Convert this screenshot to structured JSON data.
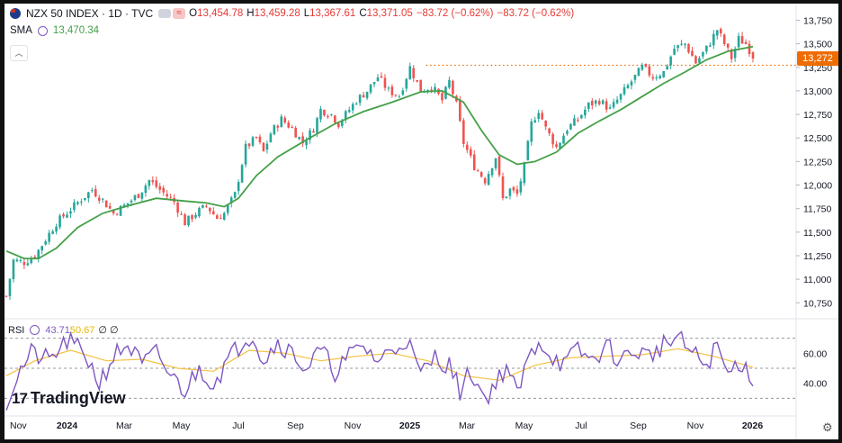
{
  "header": {
    "symbol": "NZX 50 INDEX · 1D · TVC",
    "o_label": "O",
    "o_value": "13,454.78",
    "h_label": "H",
    "h_value": "13,459.28",
    "l_label": "L",
    "l_value": "13,367.61",
    "c_label": "C",
    "c_value": "13,371.05",
    "change": "−83.72 (−0.62%)",
    "change2": "−83.72 (−0.62%)",
    "pill_icon": "≈"
  },
  "sma": {
    "label": "SMA",
    "value": "13,470.34"
  },
  "rsi": {
    "label": "RSI",
    "value": "43.71",
    "ma_value": "50.67",
    "extra": "∅ ∅"
  },
  "logo": {
    "mark": "17",
    "text": "TradingView"
  },
  "price_label": "13,272",
  "colors": {
    "up": "#26a69a",
    "down": "#ef5350",
    "sma": "#43a047",
    "rsi": "#7e57c2",
    "rsi_ma": "#f5c242",
    "last_price": "#ef6c00"
  },
  "chart_data": {
    "type": "candlestick",
    "y_ticks": [
      "13,750",
      "13,500",
      "13,250",
      "13,000",
      "12,750",
      "12,500",
      "12,250",
      "12,000",
      "11,750",
      "11,500",
      "11,250",
      "11,000",
      "10,750"
    ],
    "x_ticks": [
      "Nov",
      "2024",
      "Mar",
      "May",
      "Jul",
      "Sep",
      "Nov",
      "2025",
      "Mar",
      "May",
      "Jul",
      "Sep",
      "Nov",
      "2026"
    ],
    "ylim": [
      10600,
      13850
    ],
    "close_path": [
      {
        "x": 0,
        "y": 10820
      },
      {
        "x": 2,
        "y": 11200
      },
      {
        "x": 5,
        "y": 11180
      },
      {
        "x": 8,
        "y": 11250
      },
      {
        "x": 14,
        "y": 11600
      },
      {
        "x": 21,
        "y": 11850
      },
      {
        "x": 24,
        "y": 11950
      },
      {
        "x": 27,
        "y": 11840
      },
      {
        "x": 30,
        "y": 11700
      },
      {
        "x": 33,
        "y": 11780
      },
      {
        "x": 37,
        "y": 11900
      },
      {
        "x": 40,
        "y": 12050
      },
      {
        "x": 43,
        "y": 11950
      },
      {
        "x": 47,
        "y": 11820
      },
      {
        "x": 50,
        "y": 11600
      },
      {
        "x": 53,
        "y": 11700
      },
      {
        "x": 56,
        "y": 11780
      },
      {
        "x": 59,
        "y": 11650
      },
      {
        "x": 61,
        "y": 11700
      },
      {
        "x": 64,
        "y": 11900
      },
      {
        "x": 67,
        "y": 12400
      },
      {
        "x": 70,
        "y": 12500
      },
      {
        "x": 72,
        "y": 12350
      },
      {
        "x": 74,
        "y": 12550
      },
      {
        "x": 77,
        "y": 12700
      },
      {
        "x": 80,
        "y": 12600
      },
      {
        "x": 83,
        "y": 12450
      },
      {
        "x": 86,
        "y": 12600
      },
      {
        "x": 88,
        "y": 12800
      },
      {
        "x": 91,
        "y": 12750
      },
      {
        "x": 93,
        "y": 12650
      },
      {
        "x": 96,
        "y": 12800
      },
      {
        "x": 98,
        "y": 12900
      },
      {
        "x": 101,
        "y": 13000
      },
      {
        "x": 104,
        "y": 13150
      },
      {
        "x": 107,
        "y": 13000
      },
      {
        "x": 110,
        "y": 12950
      },
      {
        "x": 113,
        "y": 13250
      },
      {
        "x": 116,
        "y": 13000
      },
      {
        "x": 119,
        "y": 13050
      },
      {
        "x": 122,
        "y": 12900
      },
      {
        "x": 124,
        "y": 13100
      },
      {
        "x": 126,
        "y": 12850
      },
      {
        "x": 128,
        "y": 12450
      },
      {
        "x": 131,
        "y": 12200
      },
      {
        "x": 134,
        "y": 12050
      },
      {
        "x": 137,
        "y": 12300
      },
      {
        "x": 139,
        "y": 11850
      },
      {
        "x": 141,
        "y": 11950
      },
      {
        "x": 143,
        "y": 11900
      },
      {
        "x": 145,
        "y": 12200
      },
      {
        "x": 147,
        "y": 12650
      },
      {
        "x": 149,
        "y": 12800
      },
      {
        "x": 151,
        "y": 12600
      },
      {
        "x": 154,
        "y": 12400
      },
      {
        "x": 157,
        "y": 12600
      },
      {
        "x": 160,
        "y": 12700
      },
      {
        "x": 163,
        "y": 12850
      },
      {
        "x": 166,
        "y": 12900
      },
      {
        "x": 169,
        "y": 12800
      },
      {
        "x": 172,
        "y": 12950
      },
      {
        "x": 175,
        "y": 13100
      },
      {
        "x": 178,
        "y": 13250
      },
      {
        "x": 181,
        "y": 13150
      },
      {
        "x": 184,
        "y": 13200
      },
      {
        "x": 187,
        "y": 13450
      },
      {
        "x": 190,
        "y": 13500
      },
      {
        "x": 193,
        "y": 13300
      },
      {
        "x": 196,
        "y": 13450
      },
      {
        "x": 199,
        "y": 13650
      },
      {
        "x": 201,
        "y": 13500
      },
      {
        "x": 203,
        "y": 13350
      },
      {
        "x": 205,
        "y": 13550
      },
      {
        "x": 207,
        "y": 13500
      },
      {
        "x": 209,
        "y": 13371
      }
    ],
    "sma_path": [
      {
        "x": 0,
        "y": 11300
      },
      {
        "x": 5,
        "y": 11220
      },
      {
        "x": 9,
        "y": 11220
      },
      {
        "x": 14,
        "y": 11330
      },
      {
        "x": 20,
        "y": 11550
      },
      {
        "x": 27,
        "y": 11700
      },
      {
        "x": 34,
        "y": 11780
      },
      {
        "x": 42,
        "y": 11860
      },
      {
        "x": 50,
        "y": 11830
      },
      {
        "x": 56,
        "y": 11810
      },
      {
        "x": 61,
        "y": 11770
      },
      {
        "x": 65,
        "y": 11860
      },
      {
        "x": 70,
        "y": 12100
      },
      {
        "x": 76,
        "y": 12300
      },
      {
        "x": 84,
        "y": 12480
      },
      {
        "x": 92,
        "y": 12650
      },
      {
        "x": 100,
        "y": 12780
      },
      {
        "x": 108,
        "y": 12880
      },
      {
        "x": 116,
        "y": 12990
      },
      {
        "x": 122,
        "y": 13000
      },
      {
        "x": 128,
        "y": 12880
      },
      {
        "x": 133,
        "y": 12580
      },
      {
        "x": 138,
        "y": 12320
      },
      {
        "x": 143,
        "y": 12220
      },
      {
        "x": 148,
        "y": 12250
      },
      {
        "x": 154,
        "y": 12350
      },
      {
        "x": 160,
        "y": 12550
      },
      {
        "x": 166,
        "y": 12680
      },
      {
        "x": 172,
        "y": 12800
      },
      {
        "x": 178,
        "y": 12940
      },
      {
        "x": 184,
        "y": 13080
      },
      {
        "x": 190,
        "y": 13200
      },
      {
        "x": 196,
        "y": 13330
      },
      {
        "x": 202,
        "y": 13420
      },
      {
        "x": 209,
        "y": 13470
      }
    ],
    "prior_high_level": 13272,
    "last_price": 13272,
    "rsi": {
      "levels": [
        70,
        50,
        30
      ],
      "ticks": [
        "60.00",
        "40.00"
      ],
      "ylim": [
        20,
        80
      ],
      "value": 43.71,
      "ma_value": 50.67,
      "path": [
        {
          "x": 0,
          "y": 25
        },
        {
          "x": 3,
          "y": 45
        },
        {
          "x": 7,
          "y": 60
        },
        {
          "x": 12,
          "y": 55
        },
        {
          "x": 17,
          "y": 68
        },
        {
          "x": 22,
          "y": 60
        },
        {
          "x": 26,
          "y": 40
        },
        {
          "x": 30,
          "y": 58
        },
        {
          "x": 34,
          "y": 66
        },
        {
          "x": 38,
          "y": 52
        },
        {
          "x": 42,
          "y": 60
        },
        {
          "x": 46,
          "y": 45
        },
        {
          "x": 50,
          "y": 35
        },
        {
          "x": 54,
          "y": 50
        },
        {
          "x": 58,
          "y": 40
        },
        {
          "x": 62,
          "y": 55
        },
        {
          "x": 66,
          "y": 68
        },
        {
          "x": 69,
          "y": 73
        },
        {
          "x": 72,
          "y": 55
        },
        {
          "x": 76,
          "y": 68
        },
        {
          "x": 80,
          "y": 60
        },
        {
          "x": 84,
          "y": 50
        },
        {
          "x": 88,
          "y": 62
        },
        {
          "x": 92,
          "y": 48
        },
        {
          "x": 96,
          "y": 58
        },
        {
          "x": 100,
          "y": 65
        },
        {
          "x": 104,
          "y": 55
        },
        {
          "x": 108,
          "y": 62
        },
        {
          "x": 112,
          "y": 70
        },
        {
          "x": 116,
          "y": 45
        },
        {
          "x": 120,
          "y": 58
        },
        {
          "x": 124,
          "y": 52
        },
        {
          "x": 127,
          "y": 35
        },
        {
          "x": 130,
          "y": 48
        },
        {
          "x": 134,
          "y": 30
        },
        {
          "x": 137,
          "y": 40
        },
        {
          "x": 140,
          "y": 52
        },
        {
          "x": 143,
          "y": 32
        },
        {
          "x": 146,
          "y": 55
        },
        {
          "x": 149,
          "y": 69
        },
        {
          "x": 152,
          "y": 60
        },
        {
          "x": 156,
          "y": 52
        },
        {
          "x": 160,
          "y": 62
        },
        {
          "x": 164,
          "y": 55
        },
        {
          "x": 168,
          "y": 65
        },
        {
          "x": 172,
          "y": 55
        },
        {
          "x": 176,
          "y": 62
        },
        {
          "x": 180,
          "y": 58
        },
        {
          "x": 184,
          "y": 66
        },
        {
          "x": 188,
          "y": 70
        },
        {
          "x": 192,
          "y": 60
        },
        {
          "x": 196,
          "y": 52
        },
        {
          "x": 199,
          "y": 65
        },
        {
          "x": 202,
          "y": 45
        },
        {
          "x": 205,
          "y": 55
        },
        {
          "x": 209,
          "y": 43.71
        }
      ],
      "ma_path": [
        {
          "x": 0,
          "y": 45
        },
        {
          "x": 8,
          "y": 55
        },
        {
          "x": 18,
          "y": 62
        },
        {
          "x": 28,
          "y": 55
        },
        {
          "x": 38,
          "y": 56
        },
        {
          "x": 48,
          "y": 50
        },
        {
          "x": 58,
          "y": 48
        },
        {
          "x": 68,
          "y": 62
        },
        {
          "x": 78,
          "y": 60
        },
        {
          "x": 88,
          "y": 55
        },
        {
          "x": 98,
          "y": 58
        },
        {
          "x": 108,
          "y": 60
        },
        {
          "x": 118,
          "y": 55
        },
        {
          "x": 128,
          "y": 45
        },
        {
          "x": 138,
          "y": 42
        },
        {
          "x": 148,
          "y": 52
        },
        {
          "x": 158,
          "y": 57
        },
        {
          "x": 168,
          "y": 58
        },
        {
          "x": 178,
          "y": 59
        },
        {
          "x": 188,
          "y": 63
        },
        {
          "x": 198,
          "y": 58
        },
        {
          "x": 209,
          "y": 50.67
        }
      ]
    }
  }
}
